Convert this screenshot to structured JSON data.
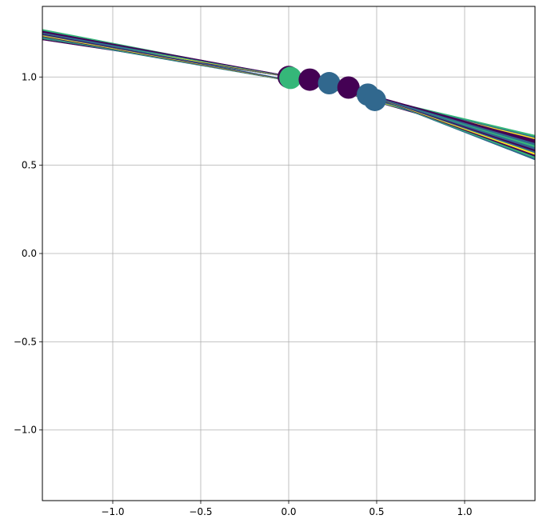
{
  "chart_data": {
    "type": "scatter",
    "title": "",
    "xlabel": "",
    "ylabel": "",
    "xlim": [
      -1.4,
      1.4
    ],
    "ylim": [
      -1.4,
      1.4
    ],
    "grid": true,
    "x_ticks": [
      {
        "value": -1.0,
        "label": "−1.0"
      },
      {
        "value": -0.5,
        "label": "−0.5"
      },
      {
        "value": 0.0,
        "label": "0.0"
      },
      {
        "value": 0.5,
        "label": "0.5"
      },
      {
        "value": 1.0,
        "label": "1.0"
      }
    ],
    "y_ticks": [
      {
        "value": 1.0,
        "label": "1.0"
      },
      {
        "value": 0.5,
        "label": "0.5"
      },
      {
        "value": 0.0,
        "label": "0.0"
      },
      {
        "value": -0.5,
        "label": "−0.5"
      },
      {
        "value": -1.0,
        "label": "−1.0"
      }
    ],
    "colormap": [
      "#440154",
      "#31688e",
      "#35b779",
      "#fde725"
    ],
    "points": [
      {
        "x": 0.0,
        "y": 1.0,
        "color": "#440154"
      },
      {
        "x": 0.01,
        "y": 0.995,
        "color": "#35b779"
      },
      {
        "x": 0.12,
        "y": 0.985,
        "color": "#440154"
      },
      {
        "x": 0.23,
        "y": 0.965,
        "color": "#31688e"
      },
      {
        "x": 0.34,
        "y": 0.94,
        "color": "#440154"
      },
      {
        "x": 0.45,
        "y": 0.9,
        "color": "#31688e"
      },
      {
        "x": 0.49,
        "y": 0.87,
        "color": "#31688e"
      }
    ],
    "fans": [
      {
        "origin": [
          0.0,
          1.0
        ],
        "colors": [
          "#440154",
          "#35b779",
          "#fde725",
          "#31688e",
          "#440154",
          "#35b779",
          "#440154",
          "#fde725",
          "#31688e",
          "#35b779"
        ],
        "left": {
          "x": -1.4,
          "y_from": 1.21,
          "y_to": 1.27
        },
        "right": {
          "x": 1.4,
          "y_from": 0.6,
          "y_to": 0.67
        }
      },
      {
        "origin": [
          0.23,
          0.965
        ],
        "colors": [
          "#31688e",
          "#440154",
          "#fde725",
          "#35b779",
          "#31688e",
          "#440154"
        ],
        "left": {
          "x": -1.4,
          "y_from": 1.22,
          "y_to": 1.26
        },
        "right": {
          "x": 1.4,
          "y_from": 0.56,
          "y_to": 0.64
        }
      },
      {
        "origin": [
          0.45,
          0.9
        ],
        "colors": [
          "#31688e",
          "#35b779",
          "#440154",
          "#fde725",
          "#31688e",
          "#440154",
          "#31688e"
        ],
        "left": {
          "x": -1.4,
          "y_from": 1.22,
          "y_to": 1.25
        },
        "right": {
          "x": 1.4,
          "y_from": 0.53,
          "y_to": 0.6
        }
      }
    ]
  }
}
